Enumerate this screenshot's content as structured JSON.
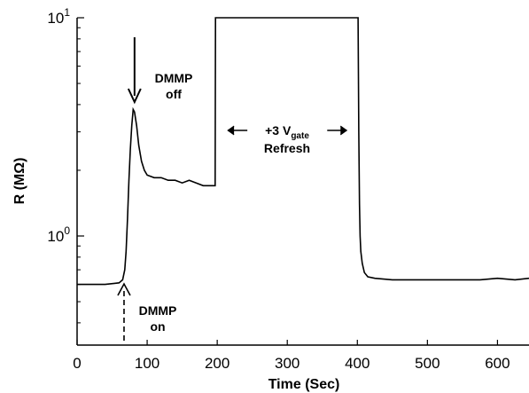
{
  "chart_data": {
    "type": "line",
    "title": "",
    "xlabel": "Time (Sec)",
    "ylabel": "R (MΩ)",
    "xlim": [
      0,
      645
    ],
    "ylim_log10": [
      -0.5,
      1
    ],
    "y_scale": "log",
    "grid": false,
    "legend": "none",
    "x_ticks": [
      {
        "value": 0,
        "label": "0"
      },
      {
        "value": 100,
        "label": "100"
      },
      {
        "value": 200,
        "label": "200"
      },
      {
        "value": 300,
        "label": "300"
      },
      {
        "value": 400,
        "label": "400"
      },
      {
        "value": 500,
        "label": "500"
      },
      {
        "value": 600,
        "label": "600"
      }
    ],
    "y_ticks": [
      {
        "value": 1,
        "base": "10",
        "exp": "0"
      },
      {
        "value": 10,
        "base": "10",
        "exp": "1"
      }
    ],
    "series": [
      {
        "color": "#000000",
        "x": [
          0,
          20,
          40,
          60,
          65,
          68,
          70,
          72,
          74,
          76,
          78,
          80,
          82,
          85,
          88,
          92,
          96,
          100,
          110,
          120,
          130,
          140,
          150,
          160,
          170,
          180,
          190,
          196,
          197,
          197.5,
          401,
          402,
          403,
          404,
          405,
          407,
          410,
          415,
          425,
          450,
          475,
          500,
          525,
          550,
          575,
          600,
          625,
          645
        ],
        "y": [
          0.6,
          0.6,
          0.6,
          0.61,
          0.63,
          0.7,
          0.85,
          1.2,
          1.8,
          2.5,
          3.2,
          3.8,
          3.7,
          3.2,
          2.6,
          2.2,
          2.0,
          1.9,
          1.85,
          1.85,
          1.8,
          1.8,
          1.75,
          1.8,
          1.75,
          1.7,
          1.7,
          1.7,
          1.7,
          10.5,
          10.5,
          3.0,
          1.4,
          1.0,
          0.85,
          0.75,
          0.68,
          0.65,
          0.64,
          0.63,
          0.63,
          0.63,
          0.63,
          0.63,
          0.63,
          0.64,
          0.63,
          0.64
        ]
      }
    ],
    "annotations": {
      "dmmp_off": {
        "line1": "DMMP",
        "line2": "off",
        "x": 82
      },
      "dmmp_on": {
        "line1": "DMMP",
        "line2": "on",
        "x": 67
      },
      "refresh": {
        "prefix": "+3 V",
        "sub": "gate",
        "line2": "Refresh",
        "x_from": 200,
        "x_to": 400
      }
    }
  }
}
